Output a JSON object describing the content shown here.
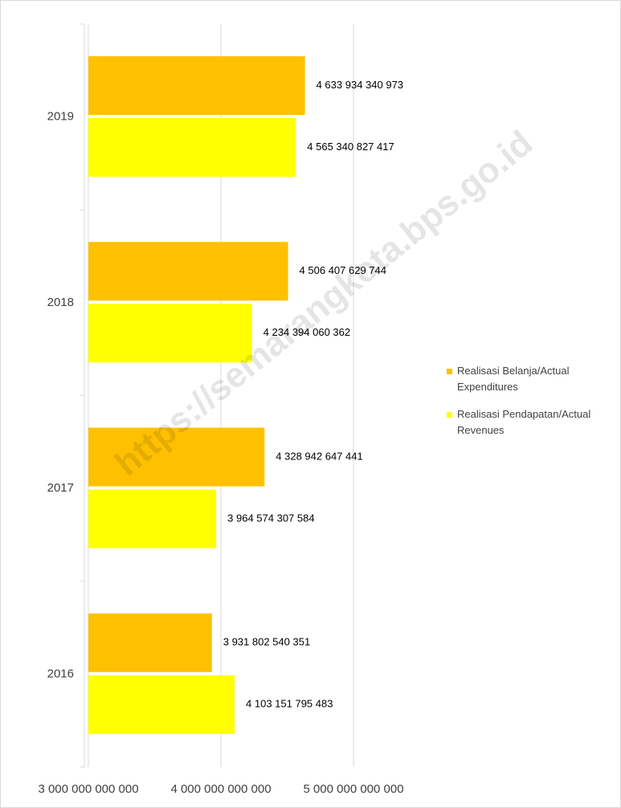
{
  "chart_data": {
    "type": "bar",
    "orientation": "horizontal",
    "categories": [
      "2016",
      "2017",
      "2018",
      "2019"
    ],
    "series": [
      {
        "name": "Realisasi Belanja/Actual Expenditures",
        "color": "#ffc000",
        "values": [
          3931802540351,
          4328942647441,
          4506407629744,
          4633934340973
        ],
        "value_labels": [
          "3 931 802 540 351",
          "4 328 942 647 441",
          "4 506 407 629 744",
          "4 633 934 340 973"
        ]
      },
      {
        "name": "Realisasi Pendapatan/Actual Revenues",
        "color": "#ffff00",
        "values": [
          4103151795483,
          3964574307584,
          4234394060362,
          4565340827417
        ],
        "value_labels": [
          "4 103 151 795 483",
          "3 964 574 307 584",
          "4 234 394 060 362",
          "4 565 340 827 417"
        ]
      }
    ],
    "xlim": [
      3000000000000,
      5000000000000
    ],
    "xticks": [
      {
        "value": 3000000000000,
        "label": "3 000 000 000 000"
      },
      {
        "value": 4000000000000,
        "label": "4 000 000 000 000"
      },
      {
        "value": 5000000000000,
        "label": "5 000 000 000 000"
      }
    ],
    "grid": true,
    "legend": "right",
    "watermark": "https://semarangkota.bps.go.id"
  }
}
